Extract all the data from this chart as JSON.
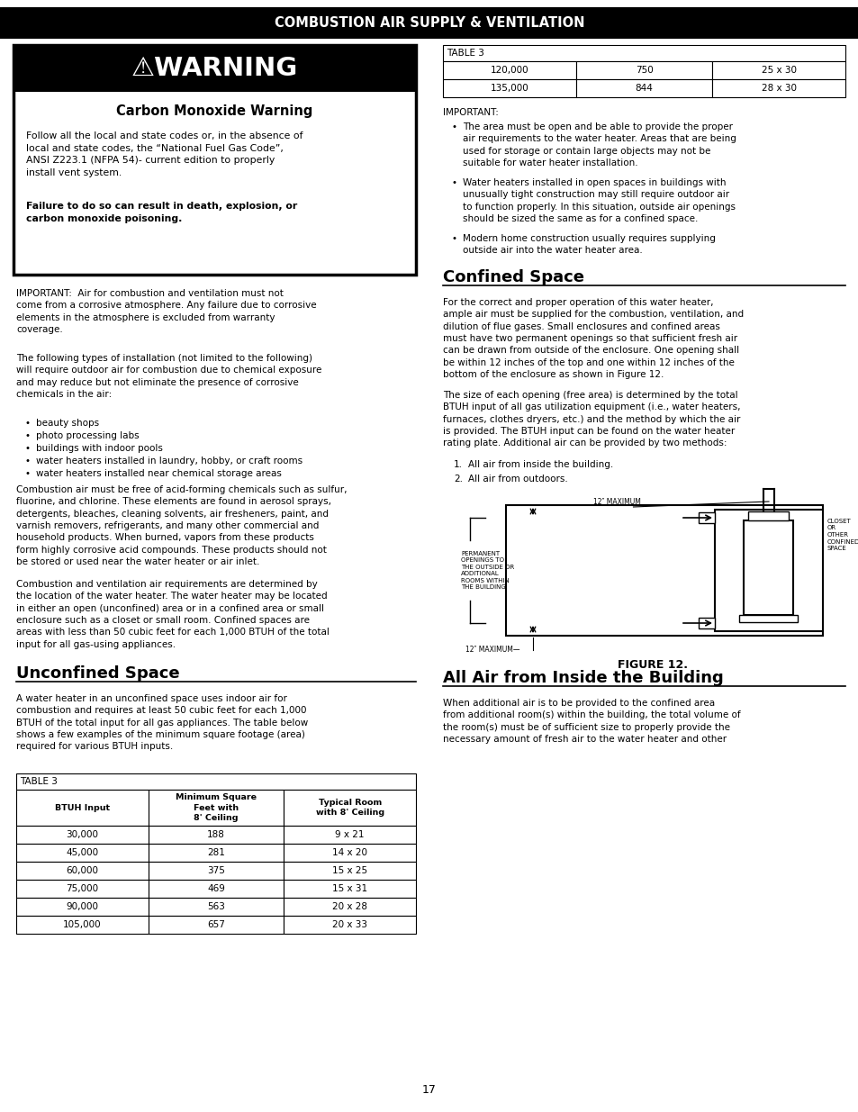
{
  "title": "COMBUSTION AIR SUPPLY & VENTILATION",
  "page_number": "17",
  "bg": "#ffffff",
  "header_bg": "#000000",
  "header_fg": "#ffffff",
  "warning": {
    "header_text": "⚠WARNING",
    "subheader": "Carbon Monoxide Warning",
    "para1_bold": "Follow all the local and state codes or, in the absence of\nlocal and state codes, the “National Fuel Gas Code”,\nANSI Z223.1 (NFPA 54)- current edition to properly\ninstall vent system.",
    "para2_bold": "Failure to do so can result in death, explosion, or\ncarbon monoxide poisoning."
  },
  "left": {
    "important": "IMPORTANT:  Air for combustion and ventilation must not\ncome from a corrosive atmosphere. Any failure due to corrosive\nelements in the atmosphere is excluded from warranty\ncoverage.",
    "para1": "The following types of installation (not limited to the following)\nwill require outdoor air for combustion due to chemical exposure\nand may reduce but not eliminate the presence of corrosive\nchemicals in the air:",
    "bullets": [
      "beauty shops",
      "photo processing labs",
      "buildings with indoor pools",
      "water heaters installed in laundry, hobby, or craft rooms",
      "water heaters installed near chemical storage areas"
    ],
    "para2": "Combustion air must be free of acid-forming chemicals such as sulfur,\nfluorine, and chlorine. These elements are found in aerosol sprays,\ndetergents, bleaches, cleaning solvents, air fresheners, paint, and\nvarnish removers, refrigerants, and many other commercial and\nhousehold products. When burned, vapors from these products\nform highly corrosive acid compounds. These products should not\nbe stored or used near the water heater or air inlet.",
    "para3": "Combustion and ventilation air requirements are determined by\nthe location of the water heater. The water heater may be located\nin either an open (unconfined) area or in a confined area or small\nenclosure such as a closet or small room. Confined spaces are\nareas with less than 50 cubic feet for each 1,000 BTUH of the total\ninput for all gas-using appliances.",
    "sec1_title": "Unconfined Space",
    "sec1_para": "A water heater in an unconfined space uses indoor air for\ncombustion and requires at least 50 cubic feet for each 1,000\nBTUH of the total input for all gas appliances. The table below\nshows a few examples of the minimum square footage (area)\nrequired for various BTUH inputs.",
    "table_header": [
      "BTUH Input",
      "Minimum Square\nFeet with\n8' Ceiling",
      "Typical Room\nwith 8' Ceiling"
    ],
    "table_rows": [
      [
        "30,000",
        "188",
        "9 x 21"
      ],
      [
        "45,000",
        "281",
        "14 x 20"
      ],
      [
        "60,000",
        "375",
        "15 x 25"
      ],
      [
        "75,000",
        "469",
        "15 x 31"
      ],
      [
        "90,000",
        "563",
        "20 x 28"
      ],
      [
        "105,000",
        "657",
        "20 x 33"
      ]
    ]
  },
  "right": {
    "table_rows_top": [
      [
        "120,000",
        "750",
        "25 x 30"
      ],
      [
        "135,000",
        "844",
        "28 x 30"
      ]
    ],
    "imp_bullets": [
      "The area must be open and be able to provide the proper\nair requirements to the water heater. Areas that are being\nused for storage or contain large objects may not be\nsuitable for water heater installation.",
      "Water heaters installed in open spaces in buildings with\nunusually tight construction may still require outdoor air\nto function properly. In this situation, outside air openings\nshould be sized the same as for a confined space.",
      "Modern home construction usually requires supplying\noutside air into the water heater area."
    ],
    "sec2_title": "Confined Space",
    "sec2_para1": "For the correct and proper operation of this water heater,\nample air must be supplied for the combustion, ventilation, and\ndilution of flue gases. Small enclosures and confined areas\nmust have two permanent openings so that sufficient fresh air\ncan be drawn from outside of the enclosure. One opening shall\nbe within 12 inches of the top and one within 12 inches of the\nbottom of the enclosure as shown in Figure 12.",
    "sec2_para2": "The size of each opening (free area) is determined by the total\nBTUH input of all gas utilization equipment (i.e., water heaters,\nfurnaces, clothes dryers, etc.) and the method by which the air\nis provided. The BTUH input can be found on the water heater\nrating plate. Additional air can be provided by two methods:",
    "numbered": [
      "All air from inside the building.",
      "All air from outdoors."
    ],
    "fig_caption": "FIGURE 12.",
    "sec3_title": "All Air from Inside the Building",
    "sec3_para": "When additional air is to be provided to the confined area\nfrom additional room(s) within the building, the total volume of\nthe room(s) must be of sufficient size to properly provide the\nnecessary amount of fresh air to the water heater and other"
  }
}
